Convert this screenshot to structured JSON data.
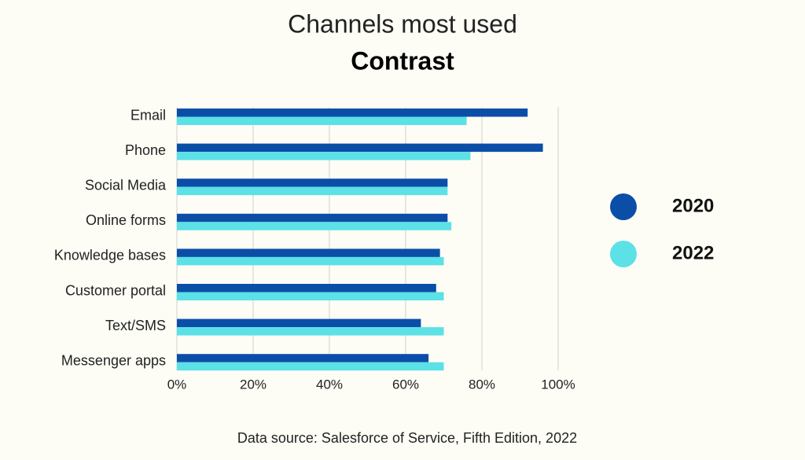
{
  "chart_data": {
    "type": "hbar",
    "title": "Channels most used",
    "subtitle": "Contrast",
    "note": "Data source: Salesforce of Service, Fifth Edition, 2022",
    "categories": [
      "Email",
      "Phone",
      "Social Media",
      "Online forms",
      "Knowledge bases",
      "Customer portal",
      "Text/SMS",
      "Messenger apps"
    ],
    "series": [
      {
        "name": "2020",
        "color": "#0b4ea8",
        "values": [
          92,
          96,
          71,
          71,
          69,
          68,
          64,
          66
        ]
      },
      {
        "name": "2022",
        "color": "#5ce1e6",
        "values": [
          76,
          77,
          71,
          72,
          70,
          70,
          70,
          70
        ]
      }
    ],
    "xlim": [
      0,
      100
    ],
    "xticks": [
      {
        "value": 0,
        "label": "0%"
      },
      {
        "value": 20,
        "label": "20%"
      },
      {
        "value": 40,
        "label": "40%"
      },
      {
        "value": 60,
        "label": "60%"
      },
      {
        "value": 80,
        "label": "80%"
      },
      {
        "value": 100,
        "label": "100%"
      }
    ],
    "grid": true,
    "legend": "right"
  }
}
